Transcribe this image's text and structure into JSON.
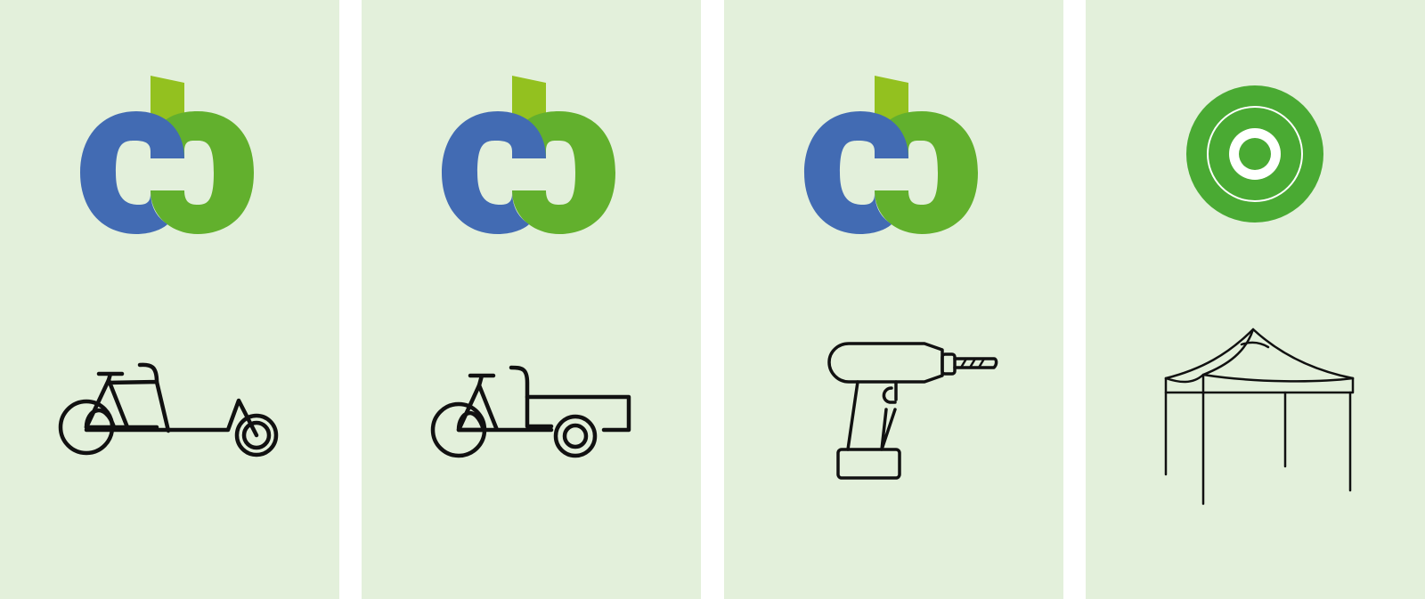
{
  "colors": {
    "card_background": "#e3f0db",
    "page_background": "#ffffff",
    "logo_blue": "#426bb3",
    "logo_green": "#62b02d",
    "logo_lime": "#93c11f",
    "ring_green": "#4aaa33",
    "icon_stroke": "#111111"
  },
  "cards": [
    {
      "logo": "cc-logo-icon",
      "illustration": "cargo-bike-icon"
    },
    {
      "logo": "cc-logo-icon",
      "illustration": "bike-trailer-icon"
    },
    {
      "logo": "cc-logo-icon",
      "illustration": "cordless-drill-icon"
    },
    {
      "logo": "green-ring-icon",
      "illustration": "canopy-tent-icon"
    }
  ]
}
